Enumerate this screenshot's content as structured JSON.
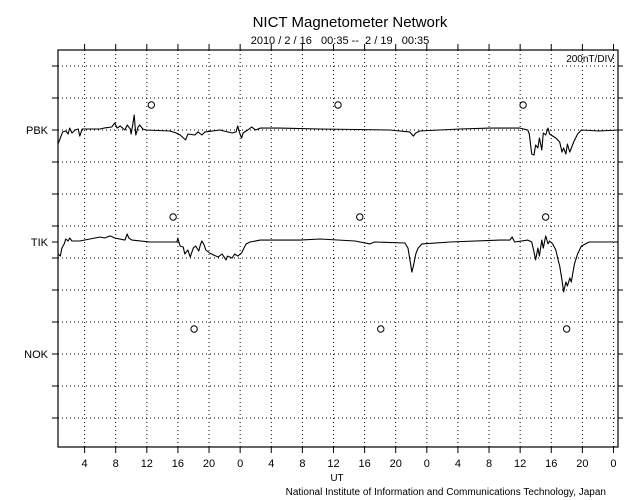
{
  "chart_data": {
    "type": "line",
    "title": "NICT Magnetometer Network",
    "subtitle": "2010 / 2 / 16   00:35 --  2 / 19   00:35",
    "scale_label": "200nT/DIV",
    "xlabel": "UT",
    "footer": "National Institute of Information and Communications Technology, Japan",
    "x_unit": "hours since 2010-02-16 00:35 UT",
    "xlim": [
      0,
      72
    ],
    "nT_per_div": 200,
    "grid": true,
    "x_tick_labels": [
      "4",
      "8",
      "12",
      "16",
      "20",
      "0",
      "4",
      "8",
      "12",
      "16",
      "20",
      "0",
      "4",
      "8",
      "12",
      "16",
      "20",
      "0"
    ],
    "x_tick_hours": [
      3.42,
      7.42,
      11.42,
      15.42,
      19.42,
      23.42,
      27.42,
      31.42,
      35.42,
      39.42,
      43.42,
      47.42,
      51.42,
      55.42,
      59.42,
      63.42,
      67.42,
      71.42
    ],
    "series": [
      {
        "name": "PBK",
        "local_midnight_hours": [
          12.0,
          36.0,
          59.8
        ],
        "points": [
          [
            0,
            -88
          ],
          [
            0.3,
            -50
          ],
          [
            0.6,
            -12
          ],
          [
            1.0,
            -6
          ],
          [
            1.3,
            -25
          ],
          [
            1.5,
            12
          ],
          [
            1.8,
            -19
          ],
          [
            2.2,
            0
          ],
          [
            2.6,
            6
          ],
          [
            2.8,
            -38
          ],
          [
            3.1,
            6
          ],
          [
            4.1,
            6
          ],
          [
            5.4,
            6
          ],
          [
            5.9,
            12
          ],
          [
            6.9,
            19
          ],
          [
            7.3,
            44
          ],
          [
            7.6,
            12
          ],
          [
            8.0,
            25
          ],
          [
            8.6,
            0
          ],
          [
            8.9,
            31
          ],
          [
            9.3,
            6
          ],
          [
            9.4,
            -25
          ],
          [
            9.6,
            31
          ],
          [
            9.8,
            94
          ],
          [
            10.0,
            -31
          ],
          [
            10.3,
            19
          ],
          [
            10.5,
            31
          ],
          [
            10.9,
            6
          ],
          [
            11.3,
            0
          ],
          [
            14.4,
            -6
          ],
          [
            15.2,
            -19
          ],
          [
            15.7,
            -31
          ],
          [
            16.4,
            -62
          ],
          [
            16.7,
            -25
          ],
          [
            17.6,
            -31
          ],
          [
            18.0,
            -12
          ],
          [
            18.5,
            -31
          ],
          [
            18.9,
            -12
          ],
          [
            20.8,
            0
          ],
          [
            22.4,
            -19
          ],
          [
            22.9,
            -12
          ],
          [
            23.1,
            25
          ],
          [
            23.4,
            -25
          ],
          [
            23.6,
            -50
          ],
          [
            23.8,
            -19
          ],
          [
            24.4,
            0
          ],
          [
            24.9,
            19
          ],
          [
            25.4,
            0
          ],
          [
            26.0,
            12
          ],
          [
            28.5,
            12
          ],
          [
            33.7,
            6
          ],
          [
            42.7,
            0
          ],
          [
            43.9,
            -6
          ],
          [
            45.2,
            -12
          ],
          [
            45.7,
            -38
          ],
          [
            46.0,
            -19
          ],
          [
            46.5,
            -6
          ],
          [
            51.7,
            6
          ],
          [
            55.5,
            12
          ],
          [
            59.4,
            12
          ],
          [
            60.4,
            0
          ],
          [
            60.6,
            -25
          ],
          [
            60.9,
            -150
          ],
          [
            61.2,
            -156
          ],
          [
            61.4,
            -94
          ],
          [
            61.7,
            -112
          ],
          [
            61.9,
            -50
          ],
          [
            62.2,
            -125
          ],
          [
            62.4,
            -19
          ],
          [
            62.7,
            -31
          ],
          [
            63.0,
            12
          ],
          [
            63.2,
            -25
          ],
          [
            64.0,
            -50
          ],
          [
            64.5,
            -75
          ],
          [
            64.8,
            -138
          ],
          [
            65.0,
            -112
          ],
          [
            65.3,
            -150
          ],
          [
            65.5,
            -88
          ],
          [
            65.8,
            -138
          ],
          [
            66.3,
            -75
          ],
          [
            66.8,
            -25
          ],
          [
            67.3,
            0
          ],
          [
            69.6,
            -6
          ],
          [
            72,
            0
          ]
        ]
      },
      {
        "name": "TIK",
        "local_midnight_hours": [
          14.8,
          38.8,
          62.7
        ],
        "points": [
          [
            0,
            -75
          ],
          [
            0.3,
            -88
          ],
          [
            0.5,
            -38
          ],
          [
            0.8,
            -12
          ],
          [
            1.0,
            19
          ],
          [
            1.3,
            6
          ],
          [
            1.5,
            25
          ],
          [
            1.8,
            6
          ],
          [
            2.8,
            6
          ],
          [
            4.1,
            19
          ],
          [
            5.4,
            31
          ],
          [
            6.0,
            25
          ],
          [
            6.7,
            38
          ],
          [
            7.3,
            25
          ],
          [
            8.6,
            12
          ],
          [
            8.9,
            50
          ],
          [
            9.1,
            25
          ],
          [
            9.5,
            12
          ],
          [
            11.8,
            0
          ],
          [
            15.3,
            0
          ],
          [
            15.4,
            25
          ],
          [
            15.7,
            -25
          ],
          [
            16.1,
            -31
          ],
          [
            16.3,
            -75
          ],
          [
            16.7,
            -50
          ],
          [
            17.0,
            -94
          ],
          [
            17.4,
            -38
          ],
          [
            17.7,
            -25
          ],
          [
            18.1,
            -56
          ],
          [
            18.3,
            -19
          ],
          [
            18.5,
            6
          ],
          [
            18.8,
            -19
          ],
          [
            19.0,
            -50
          ],
          [
            19.5,
            -69
          ],
          [
            20.0,
            -81
          ],
          [
            20.6,
            -94
          ],
          [
            21.1,
            -75
          ],
          [
            21.6,
            -112
          ],
          [
            21.8,
            -88
          ],
          [
            22.4,
            -100
          ],
          [
            22.7,
            -75
          ],
          [
            23.1,
            -88
          ],
          [
            23.6,
            -69
          ],
          [
            23.9,
            -38
          ],
          [
            24.2,
            -12
          ],
          [
            24.7,
            0
          ],
          [
            26.0,
            12
          ],
          [
            31.1,
            12
          ],
          [
            33.7,
            19
          ],
          [
            38.2,
            6
          ],
          [
            40.1,
            -12
          ],
          [
            40.7,
            0
          ],
          [
            44.6,
            -6
          ],
          [
            45.0,
            -38
          ],
          [
            45.2,
            -100
          ],
          [
            45.5,
            -188
          ],
          [
            45.7,
            -150
          ],
          [
            46.0,
            -75
          ],
          [
            46.3,
            -38
          ],
          [
            46.8,
            -12
          ],
          [
            50.4,
            0
          ],
          [
            56.8,
            12
          ],
          [
            58.1,
            12
          ],
          [
            58.4,
            31
          ],
          [
            58.7,
            0
          ],
          [
            60.4,
            12
          ],
          [
            60.9,
            0
          ],
          [
            61.2,
            -62
          ],
          [
            61.4,
            -112
          ],
          [
            61.7,
            -38
          ],
          [
            61.9,
            -88
          ],
          [
            62.2,
            12
          ],
          [
            62.4,
            -38
          ],
          [
            62.7,
            38
          ],
          [
            63.0,
            -12
          ],
          [
            63.2,
            6
          ],
          [
            63.6,
            -12
          ],
          [
            64.0,
            -50
          ],
          [
            64.3,
            -112
          ],
          [
            64.5,
            -150
          ],
          [
            64.8,
            -238
          ],
          [
            65.0,
            -312
          ],
          [
            65.3,
            -250
          ],
          [
            65.5,
            -275
          ],
          [
            65.8,
            -225
          ],
          [
            66.0,
            -250
          ],
          [
            66.4,
            -138
          ],
          [
            66.8,
            -75
          ],
          [
            67.3,
            -25
          ],
          [
            68.3,
            0
          ],
          [
            72,
            0
          ]
        ]
      },
      {
        "name": "NOK",
        "local_midnight_hours": [
          17.5,
          41.5,
          65.4
        ],
        "points": []
      }
    ]
  }
}
